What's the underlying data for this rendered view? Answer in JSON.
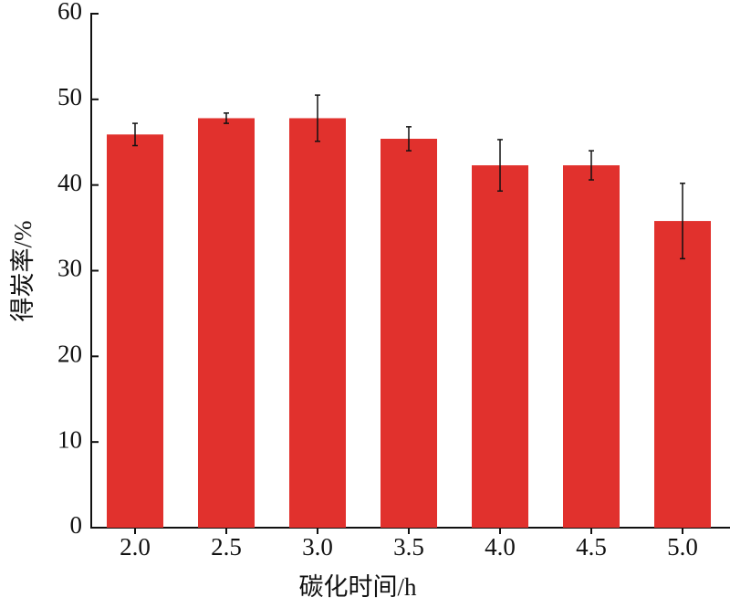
{
  "chart_data": {
    "type": "bar",
    "x_label": "碳化时间/h",
    "y_label": "得炭率/%",
    "categories": [
      "2.0",
      "2.5",
      "3.0",
      "3.5",
      "4.0",
      "4.5",
      "5.0"
    ],
    "values": [
      45.9,
      47.8,
      47.8,
      45.4,
      42.3,
      42.3,
      35.8
    ],
    "errors": [
      1.3,
      0.6,
      2.7,
      1.4,
      3.0,
      1.7,
      4.4
    ],
    "color": "#e1312d",
    "ylim": [
      0,
      60
    ],
    "yticks": [
      0,
      10,
      20,
      30,
      40,
      50,
      60
    ]
  }
}
